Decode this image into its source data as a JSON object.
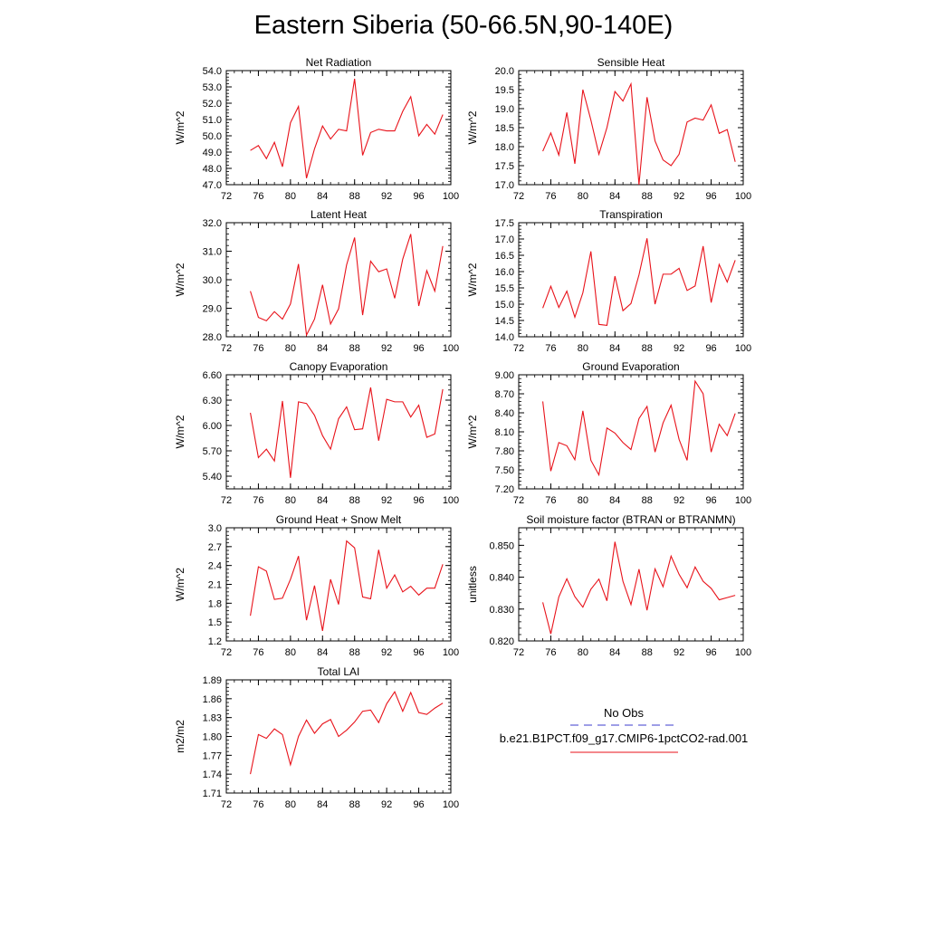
{
  "title": "Eastern Siberia (50-66.5N,90-140E)",
  "colors": {
    "model_line": "#e8121a",
    "obs_line": "#3c3ccc",
    "axis": "#000000"
  },
  "legend": {
    "obs_label": "No Obs",
    "model_label": "b.e21.B1PCT.f09_g17.CMIP6-1pctCO2-rad.001"
  },
  "chart_data": [
    {
      "type": "line",
      "title": "Net Radiation",
      "ylabel": "W/m^2",
      "xlim": [
        72,
        100
      ],
      "ylim": [
        47,
        54
      ],
      "xticks": [
        "72",
        "76",
        "80",
        "84",
        "88",
        "92",
        "96",
        "100"
      ],
      "yticks": [
        "47.0",
        "48.0",
        "49.0",
        "50.0",
        "51.0",
        "52.0",
        "53.0",
        "54.0"
      ],
      "x": [
        75,
        76,
        77,
        78,
        79,
        80,
        81,
        82,
        83,
        84,
        85,
        86,
        87,
        88,
        89,
        90,
        91,
        92,
        93,
        94,
        95,
        96,
        97,
        98,
        99
      ],
      "series": [
        {
          "values": [
            49.1,
            49.4,
            48.6,
            49.6,
            48.1,
            50.8,
            51.8,
            47.4,
            49.2,
            50.6,
            49.8,
            50.4,
            50.3,
            53.5,
            48.8,
            50.2,
            50.4,
            50.3,
            50.3,
            51.5,
            52.4,
            50.0,
            50.7,
            50.1,
            51.3
          ]
        }
      ]
    },
    {
      "type": "line",
      "title": "Sensible Heat",
      "ylabel": "W/m^2",
      "xlim": [
        72,
        100
      ],
      "ylim": [
        17,
        20
      ],
      "xticks": [
        "72",
        "76",
        "80",
        "84",
        "88",
        "92",
        "96",
        "100"
      ],
      "yticks": [
        "17.0",
        "17.5",
        "18.0",
        "18.5",
        "19.0",
        "19.5",
        "20.0"
      ],
      "x": [
        75,
        76,
        77,
        78,
        79,
        80,
        81,
        82,
        83,
        84,
        85,
        86,
        87,
        88,
        89,
        90,
        91,
        92,
        93,
        94,
        95,
        96,
        97,
        98,
        99
      ],
      "series": [
        {
          "values": [
            17.88,
            18.36,
            17.78,
            18.9,
            17.55,
            19.5,
            18.7,
            17.8,
            18.5,
            19.45,
            19.2,
            19.65,
            17.0,
            19.3,
            18.15,
            17.65,
            17.5,
            17.8,
            18.65,
            18.75,
            18.7,
            19.1,
            18.35,
            18.45,
            17.6
          ]
        }
      ]
    },
    {
      "type": "line",
      "title": "Latent Heat",
      "ylabel": "W/m^2",
      "xlim": [
        72,
        100
      ],
      "ylim": [
        28,
        32
      ],
      "xticks": [
        "72",
        "76",
        "80",
        "84",
        "88",
        "92",
        "96",
        "100"
      ],
      "yticks": [
        "28.0",
        "29.0",
        "30.0",
        "31.0",
        "32.0"
      ],
      "x": [
        75,
        76,
        77,
        78,
        79,
        80,
        81,
        82,
        83,
        84,
        85,
        86,
        87,
        88,
        89,
        90,
        91,
        92,
        93,
        94,
        95,
        96,
        97,
        98,
        99
      ],
      "series": [
        {
          "values": [
            29.6,
            28.68,
            28.56,
            28.88,
            28.62,
            29.15,
            30.55,
            28.06,
            28.62,
            29.82,
            28.45,
            28.98,
            30.52,
            31.48,
            28.76,
            30.65,
            30.28,
            30.38,
            29.35,
            30.72,
            31.6,
            29.08,
            30.32,
            29.6,
            31.18
          ]
        }
      ]
    },
    {
      "type": "line",
      "title": "Transpiration",
      "ylabel": "W/m^2",
      "xlim": [
        72,
        100
      ],
      "ylim": [
        14,
        17.5
      ],
      "xticks": [
        "72",
        "76",
        "80",
        "84",
        "88",
        "92",
        "96",
        "100"
      ],
      "yticks": [
        "14.0",
        "14.5",
        "15.0",
        "15.5",
        "16.0",
        "16.5",
        "17.0",
        "17.5"
      ],
      "x": [
        75,
        76,
        77,
        78,
        79,
        80,
        81,
        82,
        83,
        84,
        85,
        86,
        87,
        88,
        89,
        90,
        91,
        92,
        93,
        94,
        95,
        96,
        97,
        98,
        99
      ],
      "series": [
        {
          "values": [
            14.88,
            15.55,
            14.9,
            15.4,
            14.6,
            15.35,
            16.62,
            14.38,
            14.35,
            15.86,
            14.8,
            15.02,
            15.9,
            17.02,
            15.0,
            15.92,
            15.92,
            16.1,
            15.42,
            15.56,
            16.78,
            15.05,
            16.22,
            15.68,
            16.35
          ]
        }
      ]
    },
    {
      "type": "line",
      "title": "Canopy Evaporation",
      "ylabel": "W/m^2",
      "xlim": [
        72,
        100
      ],
      "ylim": [
        5.25,
        6.6
      ],
      "xticks": [
        "72",
        "76",
        "80",
        "84",
        "88",
        "92",
        "96",
        "100"
      ],
      "yticks": [
        "5.40",
        "5.70",
        "6.00",
        "6.30",
        "6.60"
      ],
      "x": [
        75,
        76,
        77,
        78,
        79,
        80,
        81,
        82,
        83,
        84,
        85,
        86,
        87,
        88,
        89,
        90,
        91,
        92,
        93,
        94,
        95,
        96,
        97,
        98,
        99
      ],
      "series": [
        {
          "values": [
            6.15,
            5.62,
            5.72,
            5.58,
            6.29,
            5.38,
            6.28,
            6.26,
            6.12,
            5.88,
            5.72,
            6.08,
            6.22,
            5.95,
            5.96,
            6.45,
            5.82,
            6.31,
            6.28,
            6.28,
            6.1,
            6.24,
            5.86,
            5.9,
            6.43
          ]
        }
      ]
    },
    {
      "type": "line",
      "title": "Ground Evaporation",
      "ylabel": "W/m^2",
      "xlim": [
        72,
        100
      ],
      "ylim": [
        7.2,
        9.0
      ],
      "xticks": [
        "72",
        "76",
        "80",
        "84",
        "88",
        "92",
        "96",
        "100"
      ],
      "yticks": [
        "7.20",
        "7.50",
        "7.80",
        "8.10",
        "8.40",
        "8.70",
        "9.00"
      ],
      "x": [
        75,
        76,
        77,
        78,
        79,
        80,
        81,
        82,
        83,
        84,
        85,
        86,
        87,
        88,
        89,
        90,
        91,
        92,
        93,
        94,
        95,
        96,
        97,
        98,
        99
      ],
      "series": [
        {
          "values": [
            8.58,
            7.48,
            7.93,
            7.88,
            7.66,
            8.43,
            7.65,
            7.42,
            8.16,
            8.08,
            7.93,
            7.82,
            8.31,
            8.5,
            7.78,
            8.24,
            8.52,
            7.98,
            7.65,
            8.9,
            8.7,
            7.78,
            8.22,
            8.04,
            8.39
          ]
        }
      ]
    },
    {
      "type": "line",
      "title": "Ground Heat + Snow Melt",
      "ylabel": "W/m^2",
      "xlim": [
        72,
        100
      ],
      "ylim": [
        1.2,
        3.0
      ],
      "xticks": [
        "72",
        "76",
        "80",
        "84",
        "88",
        "92",
        "96",
        "100"
      ],
      "yticks": [
        "1.2",
        "1.5",
        "1.8",
        "2.1",
        "2.4",
        "2.7",
        "3.0"
      ],
      "x": [
        75,
        76,
        77,
        78,
        79,
        80,
        81,
        82,
        83,
        84,
        85,
        86,
        87,
        88,
        89,
        90,
        91,
        92,
        93,
        94,
        95,
        96,
        97,
        98,
        99
      ],
      "series": [
        {
          "values": [
            1.6,
            2.38,
            2.31,
            1.86,
            1.88,
            2.18,
            2.55,
            1.53,
            2.08,
            1.36,
            2.18,
            1.78,
            2.79,
            2.68,
            1.9,
            1.87,
            2.65,
            2.04,
            2.25,
            1.98,
            2.07,
            1.93,
            2.04,
            2.04,
            2.42
          ]
        }
      ]
    },
    {
      "type": "line",
      "title": "Soil moisture factor (BTRAN or BTRANMN)",
      "ylabel": "unitless",
      "xlim": [
        72,
        100
      ],
      "ylim": [
        0.82,
        0.8555
      ],
      "xticks": [
        "72",
        "76",
        "80",
        "84",
        "88",
        "92",
        "96",
        "100"
      ],
      "yticks": [
        "0.820",
        "0.830",
        "0.840",
        "0.850"
      ],
      "x": [
        75,
        76,
        77,
        78,
        79,
        80,
        81,
        82,
        83,
        84,
        85,
        86,
        87,
        88,
        89,
        90,
        91,
        92,
        93,
        94,
        95,
        96,
        97,
        98,
        99
      ],
      "series": [
        {
          "values": [
            0.8321,
            0.8222,
            0.8338,
            0.8395,
            0.8339,
            0.8306,
            0.8362,
            0.8394,
            0.8326,
            0.8511,
            0.8387,
            0.8314,
            0.8425,
            0.8296,
            0.8426,
            0.837,
            0.8466,
            0.8409,
            0.8367,
            0.8432,
            0.8387,
            0.8365,
            0.8329,
            0.8336,
            0.8343
          ]
        }
      ]
    },
    {
      "type": "line",
      "title": "Total LAI",
      "ylabel": "m2/m2",
      "xlim": [
        72,
        100
      ],
      "ylim": [
        1.71,
        1.89
      ],
      "xticks": [
        "72",
        "76",
        "80",
        "84",
        "88",
        "92",
        "96",
        "100"
      ],
      "yticks": [
        "1.71",
        "1.74",
        "1.77",
        "1.80",
        "1.83",
        "1.86",
        "1.89"
      ],
      "x": [
        75,
        76,
        77,
        78,
        79,
        80,
        81,
        82,
        83,
        84,
        85,
        86,
        87,
        88,
        89,
        90,
        91,
        92,
        93,
        94,
        95,
        96,
        97,
        98,
        99
      ],
      "series": [
        {
          "values": [
            1.74,
            1.803,
            1.797,
            1.812,
            1.803,
            1.755,
            1.8,
            1.826,
            1.805,
            1.82,
            1.827,
            1.8,
            1.81,
            1.823,
            1.84,
            1.842,
            1.822,
            1.852,
            1.871,
            1.84,
            1.87,
            1.838,
            1.835,
            1.845,
            1.853
          ]
        }
      ]
    }
  ]
}
